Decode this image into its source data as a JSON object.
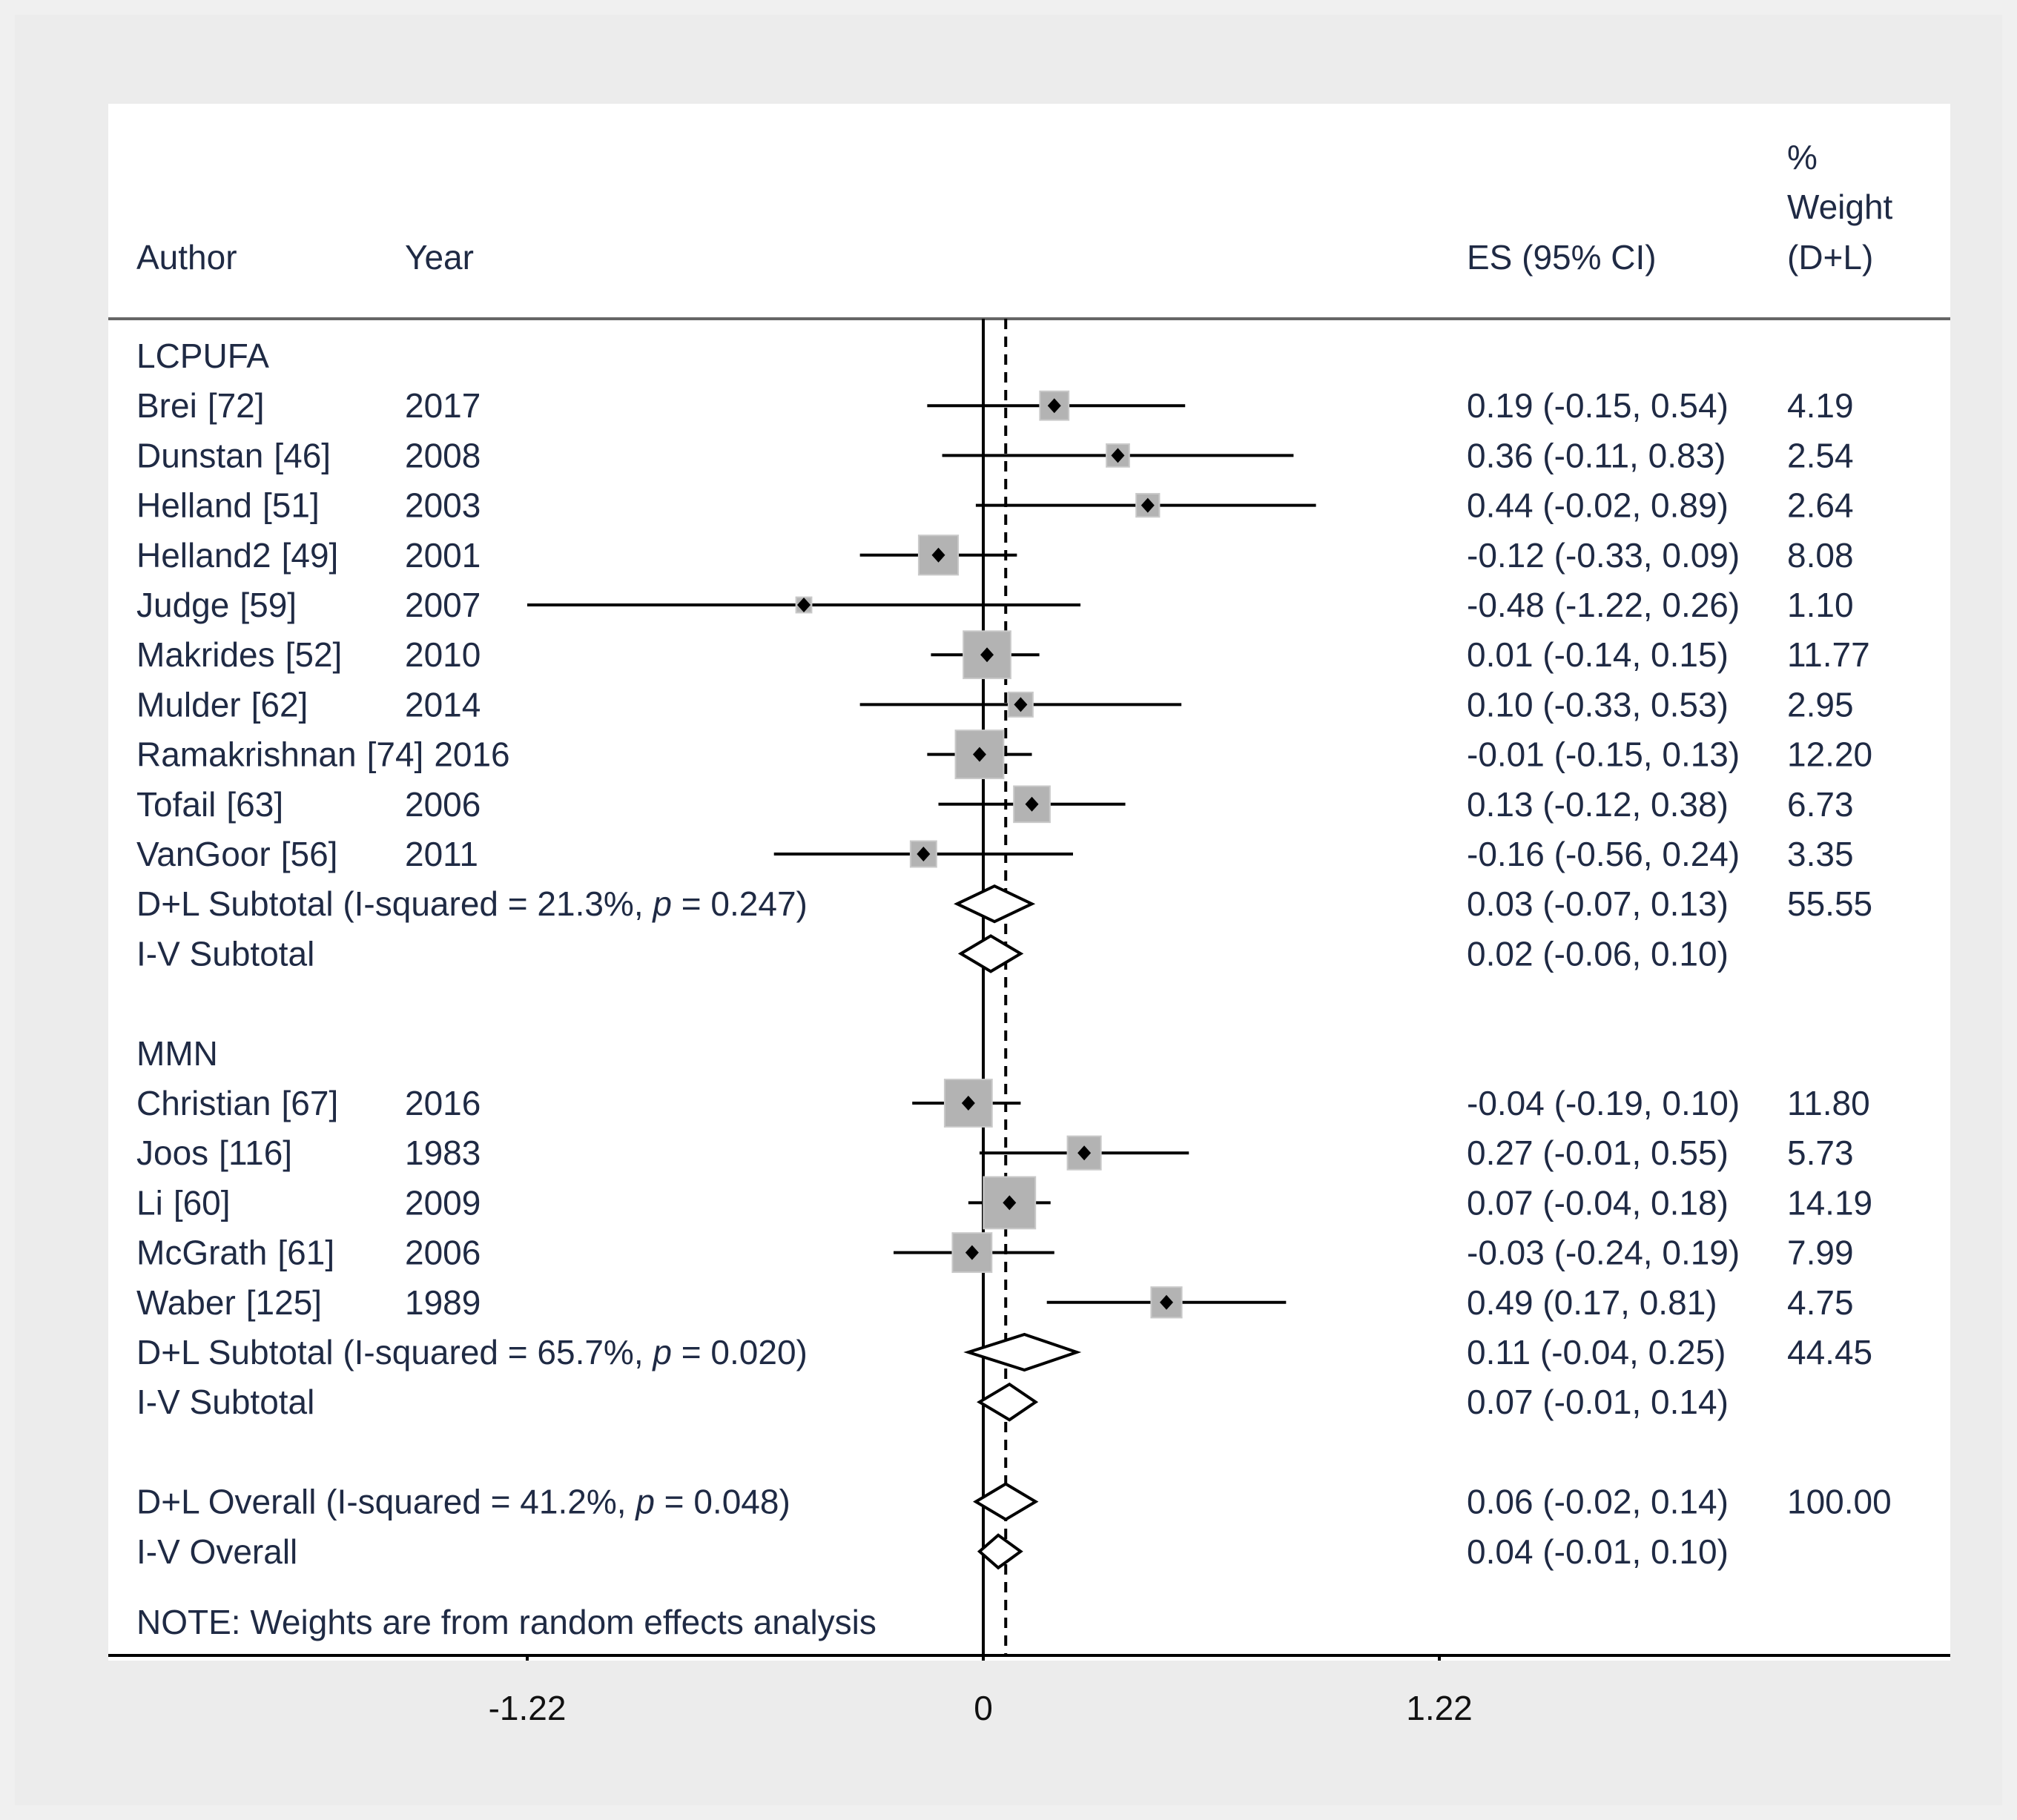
{
  "chart_data": {
    "type": "forest",
    "columns": {
      "author": "Author",
      "year": "Year",
      "es": "ES (95% CI)",
      "weight_line1": "%",
      "weight_line2": "Weight",
      "weight_line3": "(D+L)"
    },
    "x_axis": {
      "ticks": [
        -1.22,
        0,
        1.22
      ],
      "tick_labels": [
        "-1.22",
        "0",
        "1.22"
      ],
      "range": [
        -1.22,
        1.22
      ],
      "null_line": 0,
      "overall_line": 0.06
    },
    "groups": [
      {
        "name": "LCPUFA",
        "studies": [
          {
            "author": "Brei",
            "ref": "[72]",
            "year": "2017",
            "es": 0.19,
            "lo": -0.15,
            "hi": 0.54,
            "es_text": "0.19 (-0.15, 0.54)",
            "weight": 4.19,
            "weight_text": "4.19"
          },
          {
            "author": "Dunstan",
            "ref": "[46]",
            "year": "2008",
            "es": 0.36,
            "lo": -0.11,
            "hi": 0.83,
            "es_text": "0.36 (-0.11, 0.83)",
            "weight": 2.54,
            "weight_text": "2.54"
          },
          {
            "author": "Helland",
            "ref": "[51]",
            "year": "2003",
            "es": 0.44,
            "lo": -0.02,
            "hi": 0.89,
            "es_text": "0.44 (-0.02, 0.89)",
            "weight": 2.64,
            "weight_text": "2.64"
          },
          {
            "author": "Helland2",
            "ref": "[49]",
            "year": "2001",
            "es": -0.12,
            "lo": -0.33,
            "hi": 0.09,
            "es_text": "-0.12 (-0.33, 0.09)",
            "weight": 8.08,
            "weight_text": "8.08"
          },
          {
            "author": "Judge",
            "ref": "[59]",
            "year": "2007",
            "es": -0.48,
            "lo": -1.22,
            "hi": 0.26,
            "es_text": "-0.48 (-1.22, 0.26)",
            "weight": 1.1,
            "weight_text": "1.10"
          },
          {
            "author": "Makrides",
            "ref": "[52]",
            "year": "2010",
            "es": 0.01,
            "lo": -0.14,
            "hi": 0.15,
            "es_text": "0.01 (-0.14, 0.15)",
            "weight": 11.77,
            "weight_text": "11.77"
          },
          {
            "author": "Mulder",
            "ref": "[62]",
            "year": "2014",
            "es": 0.1,
            "lo": -0.33,
            "hi": 0.53,
            "es_text": "0.10 (-0.33, 0.53)",
            "weight": 2.95,
            "weight_text": "2.95"
          },
          {
            "author": "Ramakrishnan",
            "ref": "[74]",
            "year": "2016",
            "es": -0.01,
            "lo": -0.15,
            "hi": 0.13,
            "es_text": "-0.01 (-0.15, 0.13)",
            "weight": 12.2,
            "weight_text": "12.20",
            "inline_year": true
          },
          {
            "author": "Tofail",
            "ref": "[63]",
            "year": "2006",
            "es": 0.13,
            "lo": -0.12,
            "hi": 0.38,
            "es_text": "0.13 (-0.12, 0.38)",
            "weight": 6.73,
            "weight_text": "6.73"
          },
          {
            "author": "VanGoor",
            "ref": "[56]",
            "year": "2011",
            "es": -0.16,
            "lo": -0.56,
            "hi": 0.24,
            "es_text": "-0.16 (-0.56, 0.24)",
            "weight": 3.35,
            "weight_text": "3.35"
          }
        ],
        "dl_subtotal": {
          "label": "D+L Subtotal",
          "het_prefix": "(I-squared = 21.3%, ",
          "p_label": "p",
          "het_suffix": " = 0.247)",
          "es": 0.03,
          "lo": -0.07,
          "hi": 0.13,
          "es_text": "0.03 (-0.07, 0.13)",
          "weight_text": "55.55"
        },
        "iv_subtotal": {
          "label": "I-V Subtotal",
          "es": 0.02,
          "lo": -0.06,
          "hi": 0.1,
          "es_text": "0.02 (-0.06, 0.10)"
        }
      },
      {
        "name": "MMN",
        "studies": [
          {
            "author": "Christian",
            "ref": "[67]",
            "year": "2016",
            "es": -0.04,
            "lo": -0.19,
            "hi": 0.1,
            "es_text": "-0.04 (-0.19, 0.10)",
            "weight": 11.8,
            "weight_text": "11.80"
          },
          {
            "author": "Joos",
            "ref": "[116]",
            "year": "1983",
            "es": 0.27,
            "lo": -0.01,
            "hi": 0.55,
            "es_text": "0.27 (-0.01, 0.55)",
            "weight": 5.73,
            "weight_text": "5.73"
          },
          {
            "author": "Li",
            "ref": "[60]",
            "year": "2009",
            "es": 0.07,
            "lo": -0.04,
            "hi": 0.18,
            "es_text": "0.07 (-0.04, 0.18)",
            "weight": 14.19,
            "weight_text": "14.19"
          },
          {
            "author": "McGrath",
            "ref": "[61]",
            "year": "2006",
            "es": -0.03,
            "lo": -0.24,
            "hi": 0.19,
            "es_text": "-0.03 (-0.24, 0.19)",
            "weight": 7.99,
            "weight_text": "7.99"
          },
          {
            "author": "Waber",
            "ref": "[125]",
            "year": "1989",
            "es": 0.49,
            "lo": 0.17,
            "hi": 0.81,
            "es_text": "0.49 (0.17, 0.81)",
            "weight": 4.75,
            "weight_text": "4.75"
          }
        ],
        "dl_subtotal": {
          "label": "D+L Subtotal",
          "het_prefix": "(I-squared = 65.7%, ",
          "p_label": "p",
          "het_suffix": " = 0.020)",
          "es": 0.11,
          "lo": -0.04,
          "hi": 0.25,
          "es_text": "0.11 (-0.04, 0.25)",
          "weight_text": "44.45"
        },
        "iv_subtotal": {
          "label": "I-V Subtotal",
          "es": 0.07,
          "lo": -0.01,
          "hi": 0.14,
          "es_text": "0.07 (-0.01, 0.14)"
        }
      }
    ],
    "dl_overall": {
      "label": "D+L Overall",
      "het_prefix": "(I-squared = 41.2%, ",
      "p_label": "p",
      "het_suffix": " = 0.048)",
      "es": 0.06,
      "lo": -0.02,
      "hi": 0.14,
      "es_text": "0.06 (-0.02, 0.14)",
      "weight_text": "100.00"
    },
    "iv_overall": {
      "label": "I-V Overall",
      "es": 0.04,
      "lo": -0.01,
      "hi": 0.1,
      "es_text": "0.04 (-0.01, 0.10)"
    },
    "note": "NOTE: Weights are from random effects analysis",
    "colors": {
      "box": "#b3b3b3",
      "ink": "#000000",
      "text": "#1f2a44"
    }
  }
}
